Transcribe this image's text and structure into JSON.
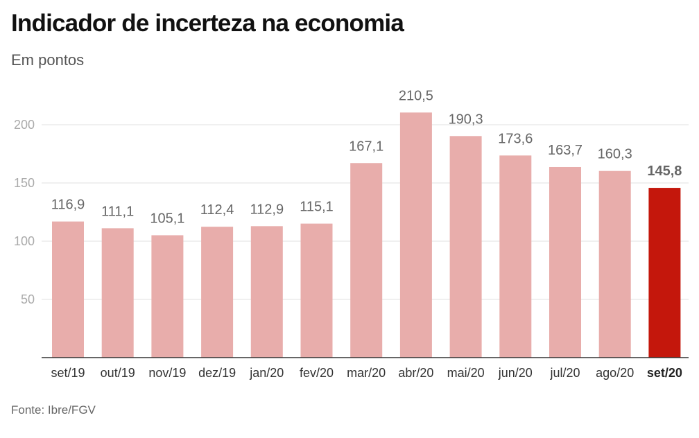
{
  "title": "Indicador de incerteza na economia",
  "subtitle": "Em pontos",
  "source": "Fonte: Ibre/FGV",
  "colors": {
    "bar": "#e8adab",
    "bar_highlight": "#c4170c"
  },
  "chart_data": {
    "type": "bar",
    "title": "Indicador de incerteza na economia",
    "subtitle": "Em pontos",
    "categories": [
      "set/19",
      "out/19",
      "nov/19",
      "dez/19",
      "jan/20",
      "fev/20",
      "mar/20",
      "abr/20",
      "mai/20",
      "jun/20",
      "jul/20",
      "ago/20",
      "set/20"
    ],
    "values": [
      116.9,
      111.1,
      105.1,
      112.4,
      112.9,
      115.1,
      167.1,
      210.5,
      190.3,
      173.6,
      163.7,
      160.3,
      145.8
    ],
    "value_labels": [
      "116,9",
      "111,1",
      "105,1",
      "112,4",
      "112,9",
      "115,1",
      "167,1",
      "210,5",
      "190,3",
      "173,6",
      "163,7",
      "160,3",
      "145,8"
    ],
    "highlight_index": 12,
    "ylim": [
      0,
      200
    ],
    "yticks": [
      50,
      100,
      150,
      200
    ],
    "ytick_labels": [
      "50",
      "100",
      "150",
      "200"
    ],
    "grid": true,
    "xlabel": "",
    "ylabel": ""
  }
}
